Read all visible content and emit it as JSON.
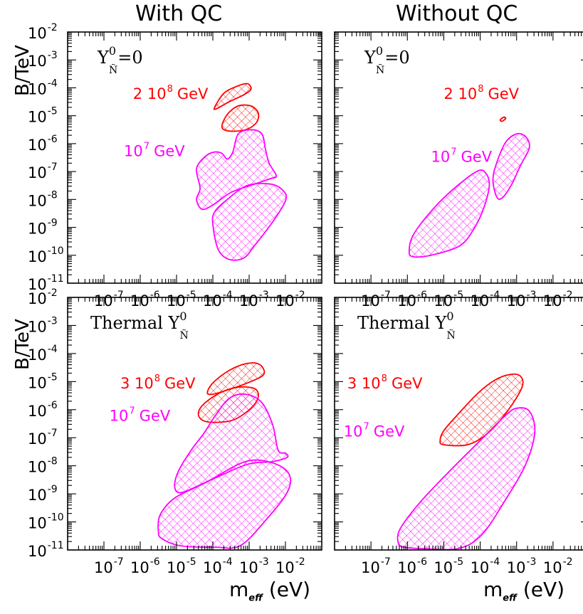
{
  "figure": {
    "col_titles": [
      "With QC",
      "Without QC"
    ],
    "ylabel": "B/TeV",
    "xlabel_main": "m",
    "xlabel_sub": "eff",
    "xlabel_unit": "(eV)"
  },
  "chart_data": [
    {
      "type": "area",
      "panel": "top-left",
      "column": "With QC",
      "row_label": {
        "prefix": "Y",
        "sup": "0",
        "sub": "Ñ",
        "suffix": "=0"
      },
      "x_scale": "log",
      "y_scale": "log",
      "xlim": [
        1e-08,
        0.1
      ],
      "ylim": [
        1e-11,
        0.01
      ],
      "x_ticks": [
        -7,
        -6,
        -5,
        -4,
        -3,
        -2
      ],
      "y_ticks": [
        -11,
        -10,
        -9,
        -8,
        -7,
        -6,
        -5,
        -4,
        -3,
        -2
      ],
      "series": [
        {
          "name": "2 10^8 GeV",
          "label_base": "2 10",
          "label_exp": "8",
          "label_unit": "GeV",
          "color": "#ff0000",
          "label_at": [
            -6.2,
            -4.4
          ],
          "regions": [
            [
              [
                -3.95,
                -4.7
              ],
              [
                -3.7,
                -4.2
              ],
              [
                -3.35,
                -3.95
              ],
              [
                -3.05,
                -3.85
              ],
              [
                -2.95,
                -4.05
              ],
              [
                -3.15,
                -4.25
              ],
              [
                -3.55,
                -4.5
              ],
              [
                -3.9,
                -4.75
              ]
            ],
            [
              [
                -3.75,
                -5.4
              ],
              [
                -3.6,
                -4.95
              ],
              [
                -3.3,
                -4.65
              ],
              [
                -2.95,
                -4.65
              ],
              [
                -2.75,
                -4.9
              ],
              [
                -2.8,
                -5.25
              ],
              [
                -3.1,
                -5.5
              ],
              [
                -3.55,
                -5.55
              ]
            ]
          ]
        },
        {
          "name": "10^7 GeV",
          "label_base": "10",
          "label_exp": "7",
          "label_unit": "GeV",
          "color": "#ff00ff",
          "label_at": [
            -6.45,
            -6.45
          ],
          "regions": [
            [
              [
                -4.45,
                -6.9
              ],
              [
                -4.2,
                -6.45
              ],
              [
                -3.95,
                -6.3
              ],
              [
                -3.75,
                -6.35
              ],
              [
                -3.6,
                -6.55
              ],
              [
                -3.45,
                -6.3
              ],
              [
                -3.3,
                -5.65
              ],
              [
                -2.95,
                -5.5
              ],
              [
                -2.65,
                -5.65
              ],
              [
                -2.55,
                -6.2
              ],
              [
                -2.45,
                -6.7
              ],
              [
                -2.25,
                -7.15
              ],
              [
                -2.4,
                -7.25
              ],
              [
                -2.85,
                -7.45
              ],
              [
                -3.5,
                -7.75
              ],
              [
                -4.0,
                -8.2
              ],
              [
                -4.3,
                -8.35
              ],
              [
                -4.45,
                -8.0
              ],
              [
                -4.35,
                -7.6
              ]
            ],
            [
              [
                -4.0,
                -8.9
              ],
              [
                -3.95,
                -8.45
              ],
              [
                -3.6,
                -8.0
              ],
              [
                -3.05,
                -7.5
              ],
              [
                -2.4,
                -7.45
              ],
              [
                -2.05,
                -7.7
              ],
              [
                -2.0,
                -8.05
              ],
              [
                -2.35,
                -8.8
              ],
              [
                -2.85,
                -9.65
              ],
              [
                -3.15,
                -10.1
              ],
              [
                -3.55,
                -10.15
              ],
              [
                -3.85,
                -9.8
              ]
            ]
          ]
        }
      ]
    },
    {
      "type": "area",
      "panel": "top-right",
      "column": "Without QC",
      "row_label": {
        "prefix": "Y",
        "sup": "0",
        "sub": "Ñ",
        "suffix": "=0"
      },
      "x_scale": "log",
      "y_scale": "log",
      "xlim": [
        1e-08,
        0.1
      ],
      "ylim": [
        1e-11,
        0.01
      ],
      "x_ticks": [
        -7,
        -6,
        -5,
        -4,
        -3,
        -2
      ],
      "y_ticks": [
        -11,
        -10,
        -9,
        -8,
        -7,
        -6,
        -5,
        -4,
        -3,
        -2
      ],
      "series": [
        {
          "name": "2 10^8 GeV",
          "label_base": "2 10",
          "label_exp": "8",
          "label_unit": "GeV",
          "color": "#ff0000",
          "label_at": [
            -5.0,
            -4.4
          ],
          "regions": [
            [
              [
                -3.45,
                -5.15
              ],
              [
                -3.35,
                -5.05
              ],
              [
                -3.3,
                -5.1
              ],
              [
                -3.4,
                -5.2
              ]
            ]
          ]
        },
        {
          "name": "10^7 GeV",
          "label_base": "10",
          "label_exp": "7",
          "label_unit": "GeV",
          "color": "#ff00ff",
          "label_at": [
            -5.35,
            -6.65
          ],
          "regions": [
            [
              [
                -5.95,
                -9.85
              ],
              [
                -5.85,
                -9.3
              ],
              [
                -5.4,
                -8.5
              ],
              [
                -4.8,
                -7.7
              ],
              [
                -4.1,
                -7.0
              ],
              [
                -3.85,
                -7.05
              ],
              [
                -3.75,
                -7.5
              ],
              [
                -3.9,
                -8.3
              ],
              [
                -4.15,
                -9.0
              ],
              [
                -4.55,
                -9.65
              ],
              [
                -5.35,
                -10.0
              ],
              [
                -5.85,
                -10.05
              ]
            ],
            [
              [
                -3.65,
                -7.3
              ],
              [
                -3.55,
                -6.7
              ],
              [
                -3.3,
                -5.95
              ],
              [
                -3.0,
                -5.65
              ],
              [
                -2.75,
                -5.75
              ],
              [
                -2.65,
                -6.15
              ],
              [
                -2.9,
                -6.8
              ],
              [
                -3.15,
                -7.5
              ],
              [
                -3.4,
                -7.95
              ],
              [
                -3.55,
                -7.9
              ]
            ]
          ]
        }
      ]
    },
    {
      "type": "area",
      "panel": "bottom-left",
      "column": "With QC",
      "row_label": {
        "prefix": "Thermal Y",
        "sup": "0",
        "sub": "Ñ",
        "suffix": ""
      },
      "x_scale": "log",
      "y_scale": "log",
      "xlim": [
        1e-08,
        0.1
      ],
      "ylim": [
        1e-11,
        0.01
      ],
      "x_ticks": [
        -7,
        -6,
        -5,
        -4,
        -3,
        -2
      ],
      "y_ticks": [
        -11,
        -10,
        -9,
        -8,
        -7,
        -6,
        -5,
        -4,
        -3,
        -2
      ],
      "series": [
        {
          "name": "3 10^8 GeV",
          "label_base": "3 10",
          "label_exp": "8",
          "label_unit": "GeV",
          "color": "#ff0000",
          "label_at": [
            -6.55,
            -5.25
          ],
          "regions": [
            [
              [
                -4.15,
                -5.4
              ],
              [
                -4.0,
                -5.05
              ],
              [
                -3.55,
                -4.6
              ],
              [
                -3.05,
                -4.35
              ],
              [
                -2.7,
                -4.4
              ],
              [
                -2.6,
                -4.75
              ],
              [
                -3.05,
                -5.05
              ],
              [
                -3.6,
                -5.3
              ],
              [
                -4.0,
                -5.45
              ]
            ],
            [
              [
                -4.4,
                -6.15
              ],
              [
                -4.25,
                -5.8
              ],
              [
                -3.8,
                -5.4
              ],
              [
                -3.3,
                -5.2
              ],
              [
                -2.85,
                -5.25
              ],
              [
                -2.75,
                -5.55
              ],
              [
                -2.95,
                -5.95
              ],
              [
                -3.4,
                -6.35
              ],
              [
                -3.85,
                -6.45
              ],
              [
                -4.25,
                -6.4
              ]
            ]
          ]
        },
        {
          "name": "10^7 GeV",
          "label_base": "10",
          "label_exp": "7",
          "label_unit": "GeV",
          "color": "#ff00ff",
          "label_at": [
            -6.85,
            -6.4
          ],
          "regions": [
            [
              [
                -5.05,
                -8.75
              ],
              [
                -4.95,
                -8.2
              ],
              [
                -4.6,
                -7.45
              ],
              [
                -4.25,
                -6.85
              ],
              [
                -3.95,
                -6.25
              ],
              [
                -3.55,
                -5.6
              ],
              [
                -3.1,
                -5.45
              ],
              [
                -2.65,
                -5.75
              ],
              [
                -2.35,
                -6.55
              ],
              [
                -2.2,
                -7.45
              ],
              [
                -2.0,
                -7.55
              ],
              [
                -1.95,
                -7.7
              ],
              [
                -2.35,
                -7.85
              ],
              [
                -3.05,
                -7.95
              ],
              [
                -4.05,
                -8.5
              ],
              [
                -4.85,
                -8.95
              ]
            ],
            [
              [
                -5.5,
                -10.35
              ],
              [
                -5.45,
                -9.75
              ],
              [
                -5.05,
                -9.15
              ],
              [
                -4.2,
                -8.6
              ],
              [
                -3.1,
                -7.85
              ],
              [
                -2.35,
                -7.9
              ],
              [
                -1.9,
                -8.3
              ],
              [
                -1.95,
                -8.95
              ],
              [
                -2.55,
                -9.95
              ],
              [
                -3.25,
                -10.85
              ],
              [
                -3.95,
                -10.9
              ],
              [
                -4.9,
                -10.85
              ],
              [
                -5.4,
                -10.6
              ]
            ]
          ]
        }
      ]
    },
    {
      "type": "area",
      "panel": "bottom-right",
      "column": "Without QC",
      "row_label": {
        "prefix": "Thermal Y",
        "sup": "0",
        "sub": "Ñ",
        "suffix": ""
      },
      "x_scale": "log",
      "y_scale": "log",
      "xlim": [
        1e-08,
        0.1
      ],
      "ylim": [
        1e-11,
        0.01
      ],
      "x_ticks": [
        -7,
        -6,
        -5,
        -4,
        -3,
        -2
      ],
      "y_ticks": [
        -11,
        -10,
        -9,
        -8,
        -7,
        -6,
        -5,
        -4,
        -3,
        -2
      ],
      "series": [
        {
          "name": "3 10^8 GeV",
          "label_base": "3 10",
          "label_exp": "8",
          "label_unit": "GeV",
          "color": "#ff0000",
          "label_at": [
            -7.65,
            -5.25
          ],
          "regions": [
            [
              [
                -5.1,
                -7.1
              ],
              [
                -5.0,
                -6.75
              ],
              [
                -4.6,
                -6.15
              ],
              [
                -4.05,
                -5.4
              ],
              [
                -3.6,
                -4.95
              ],
              [
                -3.2,
                -4.75
              ],
              [
                -2.9,
                -4.8
              ],
              [
                -2.85,
                -5.2
              ],
              [
                -3.25,
                -6.05
              ],
              [
                -3.8,
                -6.85
              ],
              [
                -4.35,
                -7.25
              ],
              [
                -5.0,
                -7.25
              ]
            ]
          ]
        },
        {
          "name": "10^7 GeV",
          "label_base": "10",
          "label_exp": "7",
          "label_unit": "GeV",
          "color": "#ff00ff",
          "label_at": [
            -7.75,
            -6.95
          ],
          "regions": [
            [
              [
                -6.25,
                -10.75
              ],
              [
                -6.2,
                -10.25
              ],
              [
                -5.65,
                -9.3
              ],
              [
                -4.85,
                -8.2
              ],
              [
                -4.0,
                -7.1
              ],
              [
                -3.3,
                -6.2
              ],
              [
                -3.0,
                -5.95
              ],
              [
                -2.65,
                -6.05
              ],
              [
                -2.5,
                -6.8
              ],
              [
                -2.75,
                -7.95
              ],
              [
                -3.3,
                -9.2
              ],
              [
                -3.95,
                -10.45
              ],
              [
                -4.6,
                -10.95
              ],
              [
                -5.6,
                -10.95
              ],
              [
                -6.1,
                -10.9
              ]
            ]
          ]
        }
      ]
    }
  ]
}
